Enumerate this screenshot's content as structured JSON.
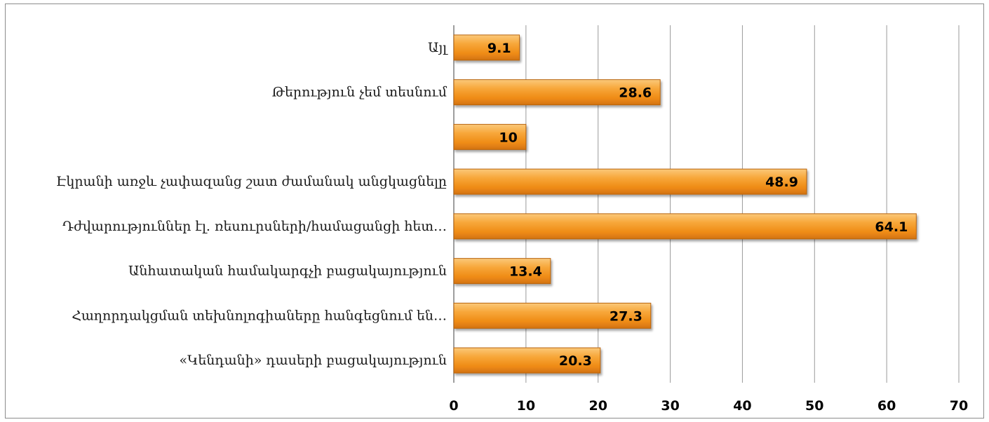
{
  "chart_data": {
    "type": "bar",
    "orientation": "horizontal",
    "categories": [
      "«Կենդանի» դասերի բացակայություն",
      "Հաղորդակցման տեխնոլոգիաները հանգեցնում են…",
      "Անհատական համակարգչի բացակայություն",
      "Դժվարություններ էլ. ռեսուրսների/համացանցի հետ…",
      "Էկրանի առջև չափազանց շատ ժամանակ անցկացնելը",
      "",
      "Թերություն չեմ տեսնում",
      "Այլ"
    ],
    "values": [
      20.3,
      27.3,
      13.4,
      64.1,
      48.9,
      10,
      28.6,
      9.1
    ],
    "xlim": [
      0,
      70
    ],
    "xticks": [
      "0",
      "10",
      "20",
      "30",
      "40",
      "50",
      "60",
      "70"
    ],
    "grid": true,
    "bar_color": "#f39a21",
    "bar_edge_color": "#b86411",
    "title": "",
    "xlabel": "",
    "ylabel": ""
  }
}
